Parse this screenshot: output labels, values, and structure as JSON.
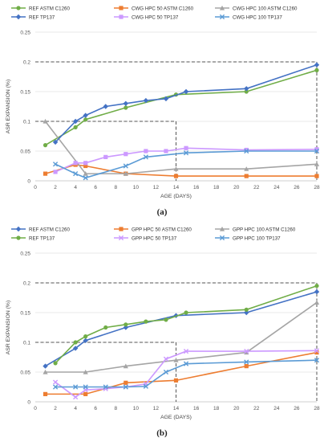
{
  "chart_data": [
    {
      "type": "line",
      "panel_label": "(a)",
      "xlabel": "AGE (DAYS)",
      "ylabel": "ASR EXPANSION (%)",
      "xlim": [
        0,
        28
      ],
      "ylim": [
        0,
        0.25
      ],
      "x_ticks": [
        "0",
        "2",
        "4",
        "6",
        "8",
        "10",
        "12",
        "14",
        "16",
        "18",
        "20",
        "22",
        "24",
        "26",
        "28"
      ],
      "y_ticks": [
        "0",
        "0.05",
        "0.1",
        "0.15",
        "0.2",
        "0.25"
      ],
      "legend_position": "top",
      "reference_lines": [
        {
          "x": 14,
          "y": 0.1
        },
        {
          "x": 28,
          "y": 0.2
        }
      ],
      "series": [
        {
          "name": "REF ASTM C1260",
          "color": "#70ad47",
          "marker": "circle",
          "points": [
            [
              1,
              0.06
            ],
            [
              4,
              0.09
            ],
            [
              5,
              0.103
            ],
            [
              9,
              0.123
            ],
            [
              14,
              0.145
            ],
            [
              21,
              0.15
            ],
            [
              28,
              0.186
            ]
          ]
        },
        {
          "name": "CWG HPC 50 ASTM C1260",
          "color": "#ed7d31",
          "marker": "square",
          "points": [
            [
              1,
              0.012
            ],
            [
              4,
              0.027
            ],
            [
              5,
              0.025
            ],
            [
              9,
              0.012
            ],
            [
              14,
              0.008
            ],
            [
              21,
              0.008
            ],
            [
              28,
              0.008
            ]
          ]
        },
        {
          "name": "CWG HPC 100 ASTM C1260",
          "color": "#a5a5a5",
          "marker": "triangle",
          "points": [
            [
              1,
              0.1
            ],
            [
              5,
              0.012
            ],
            [
              9,
              0.012
            ],
            [
              14,
              0.02
            ],
            [
              21,
              0.02
            ],
            [
              28,
              0.028
            ]
          ]
        },
        {
          "name": "REF TP137",
          "color": "#4472c4",
          "marker": "diamond",
          "points": [
            [
              2,
              0.065
            ],
            [
              4,
              0.1
            ],
            [
              5,
              0.11
            ],
            [
              7,
              0.125
            ],
            [
              9,
              0.13
            ],
            [
              11,
              0.135
            ],
            [
              13,
              0.138
            ],
            [
              15,
              0.15
            ],
            [
              21,
              0.155
            ],
            [
              28,
              0.195
            ]
          ]
        },
        {
          "name": "CWG HPC 50 TP137",
          "color": "#cc99ff",
          "marker": "square",
          "points": [
            [
              2,
              0.015
            ],
            [
              4,
              0.03
            ],
            [
              5,
              0.03
            ],
            [
              7,
              0.04
            ],
            [
              9,
              0.045
            ],
            [
              11,
              0.05
            ],
            [
              13,
              0.05
            ],
            [
              15,
              0.055
            ],
            [
              21,
              0.052
            ],
            [
              28,
              0.053
            ]
          ]
        },
        {
          "name": "CWG HPC 100 TP137",
          "color": "#5b9bd5",
          "marker": "x",
          "points": [
            [
              2,
              0.028
            ],
            [
              4,
              0.012
            ],
            [
              5,
              0.005
            ],
            [
              9,
              0.025
            ],
            [
              11,
              0.04
            ],
            [
              15,
              0.047
            ],
            [
              21,
              0.05
            ],
            [
              28,
              0.05
            ]
          ]
        }
      ]
    },
    {
      "type": "line",
      "panel_label": "(b)",
      "xlabel": "AGE (DAYS)",
      "ylabel": "ASR EXPANSION (%)",
      "xlim": [
        0,
        28
      ],
      "ylim": [
        0,
        0.25
      ],
      "x_ticks": [
        "0",
        "2",
        "4",
        "6",
        "8",
        "10",
        "12",
        "14",
        "16",
        "18",
        "20",
        "22",
        "24",
        "26",
        "28"
      ],
      "y_ticks": [
        "0",
        "0.05",
        "0.1",
        "0.15",
        "0.2",
        "0.25"
      ],
      "legend_position": "top",
      "reference_lines": [
        {
          "x": 14,
          "y": 0.1
        },
        {
          "x": 28,
          "y": 0.2
        }
      ],
      "series": [
        {
          "name": "REF ASTM C1260",
          "color": "#4472c4",
          "marker": "diamond",
          "points": [
            [
              1,
              0.06
            ],
            [
              4,
              0.09
            ],
            [
              5,
              0.103
            ],
            [
              9,
              0.125
            ],
            [
              14,
              0.145
            ],
            [
              21,
              0.15
            ],
            [
              28,
              0.185
            ]
          ]
        },
        {
          "name": "GPP HPC 50 ASTM C1260",
          "color": "#ed7d31",
          "marker": "square",
          "points": [
            [
              1,
              0.013
            ],
            [
              5,
              0.013
            ],
            [
              9,
              0.032
            ],
            [
              14,
              0.036
            ],
            [
              21,
              0.06
            ],
            [
              28,
              0.083
            ]
          ]
        },
        {
          "name": "GPP HPC 100 ASTM C1260",
          "color": "#a5a5a5",
          "marker": "triangle",
          "points": [
            [
              1,
              0.05
            ],
            [
              5,
              0.05
            ],
            [
              9,
              0.06
            ],
            [
              14,
              0.07
            ],
            [
              21,
              0.083
            ],
            [
              28,
              0.167
            ]
          ]
        },
        {
          "name": "REF TP137",
          "color": "#70ad47",
          "marker": "circle",
          "points": [
            [
              2,
              0.065
            ],
            [
              4,
              0.1
            ],
            [
              5,
              0.11
            ],
            [
              7,
              0.125
            ],
            [
              9,
              0.13
            ],
            [
              11,
              0.135
            ],
            [
              13,
              0.138
            ],
            [
              15,
              0.15
            ],
            [
              21,
              0.155
            ],
            [
              28,
              0.195
            ]
          ]
        },
        {
          "name": "GPP HPC 50 TP137",
          "color": "#cc99ff",
          "marker": "x",
          "points": [
            [
              2,
              0.033
            ],
            [
              4,
              0.008
            ],
            [
              5,
              0.02
            ],
            [
              7,
              0.022
            ],
            [
              9,
              0.025
            ],
            [
              11,
              0.03
            ],
            [
              13,
              0.072
            ],
            [
              15,
              0.085
            ],
            [
              21,
              0.085
            ],
            [
              28,
              0.086
            ]
          ]
        },
        {
          "name": "GPP HPC 100 TP137",
          "color": "#5b9bd5",
          "marker": "x",
          "points": [
            [
              2,
              0.025
            ],
            [
              4,
              0.025
            ],
            [
              5,
              0.025
            ],
            [
              7,
              0.025
            ],
            [
              9,
              0.025
            ],
            [
              11,
              0.026
            ],
            [
              13,
              0.05
            ],
            [
              15,
              0.064
            ],
            [
              21,
              0.067
            ],
            [
              28,
              0.07
            ]
          ]
        }
      ]
    }
  ]
}
